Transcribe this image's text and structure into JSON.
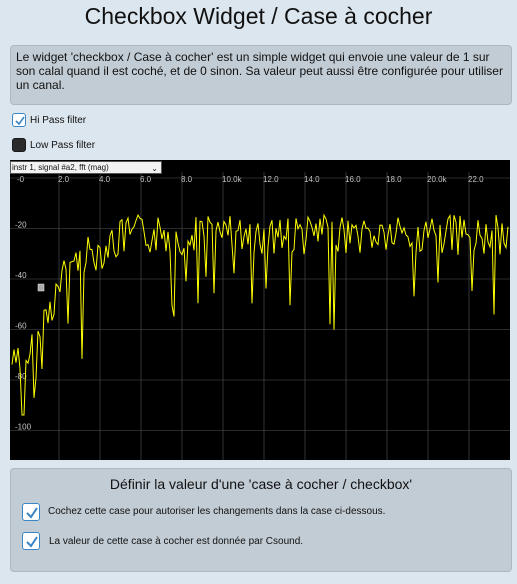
{
  "page": {
    "title": "Checkbox Widget / Case à cocher",
    "description": "Le widget 'checkbox / Case à cocher' est un simple widget qui envoie une valeur de 1 sur son calal quand il est coché, et de 0 sinon. Sa valeur peut aussi être configurée pour utiliser un canal."
  },
  "checkboxes": {
    "hipass": {
      "label": "Hi Pass filter",
      "checked": true
    },
    "lowpass": {
      "label": "Low Pass filter",
      "checked": false
    }
  },
  "graph": {
    "signal_select": "instr 1, signal #a2, fft (mag)",
    "x_ticks": [
      "-0",
      "2.0",
      "4.0",
      "6.0",
      "8.0",
      "10.0k",
      "12.0",
      "14.0",
      "16.0",
      "18.0",
      "20.0k",
      "22.0"
    ],
    "y_ticks": [
      "-20",
      "-40",
      "-60",
      "-80",
      "-100"
    ],
    "colors": {
      "background": "#000000",
      "trace": "#ffff00",
      "grid": "#555555"
    }
  },
  "panel": {
    "title": "Définir la valeur d'une 'case à cocher / checkbox'",
    "option1": {
      "label": "Cochez cette case pour autoriser les changements dans la case ci-dessous.",
      "checked": true
    },
    "option2": {
      "label": "La valeur de cette case à cocher est donnée par Csound.",
      "checked": true
    }
  }
}
